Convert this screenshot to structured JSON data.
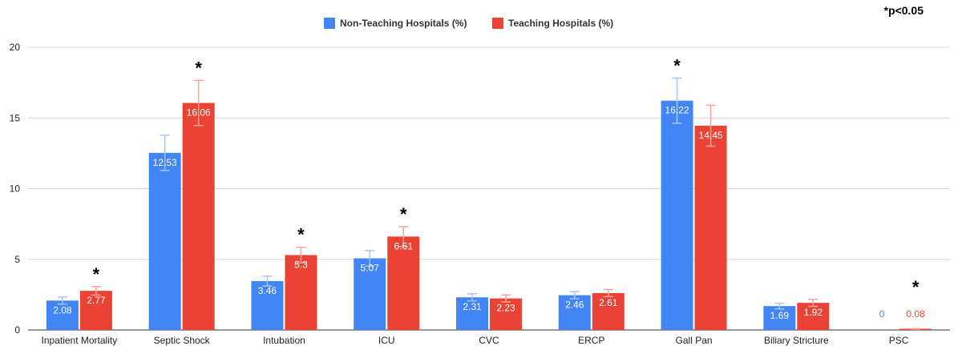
{
  "chart_data": {
    "type": "bar",
    "significance_note": "*p<0.05",
    "categories": [
      "Inpatient Mortality",
      "Septic Shock",
      "Intubation",
      "ICU",
      "CVC",
      "ERCP",
      "Gall Pan",
      "Biliary Stricture",
      "PSC"
    ],
    "series": [
      {
        "name": "Non-Teaching Hospitals (%)",
        "color": "#4285F4",
        "values": [
          2.08,
          12.53,
          3.46,
          5.07,
          2.31,
          2.46,
          16.22,
          1.69,
          0
        ],
        "labels": [
          "2.08",
          "12.53",
          "3.46",
          "5.07",
          "2.31",
          "2.46",
          "16.22",
          "1.69",
          "0"
        ],
        "errors": [
          0.25,
          1.25,
          0.35,
          0.55,
          0.25,
          0.25,
          1.6,
          0.2,
          0
        ]
      },
      {
        "name": "Teaching Hospitals (%)",
        "color": "#EA4335",
        "values": [
          2.77,
          16.06,
          5.3,
          6.61,
          2.23,
          2.61,
          14.45,
          1.92,
          0.08
        ],
        "labels": [
          "2.77",
          "16.06",
          "5.3",
          "6.61",
          "2.23",
          "2.61",
          "14.45",
          "1.92",
          "0.08"
        ],
        "errors": [
          0.3,
          1.6,
          0.55,
          0.7,
          0.25,
          0.25,
          1.45,
          0.25,
          0.02
        ]
      }
    ],
    "significant": [
      {
        "category": "Inpatient Mortality",
        "series": 1
      },
      {
        "category": "Septic Shock",
        "series": 1
      },
      {
        "category": "Intubation",
        "series": 1
      },
      {
        "category": "ICU",
        "series": 1
      },
      {
        "category": "Gall Pan",
        "series": 0
      },
      {
        "category": "PSC",
        "series": 1
      }
    ],
    "ylim": [
      0,
      20
    ],
    "yticks": [
      0,
      5,
      10,
      15,
      20
    ],
    "grid": true,
    "legend_position": "top-center"
  }
}
